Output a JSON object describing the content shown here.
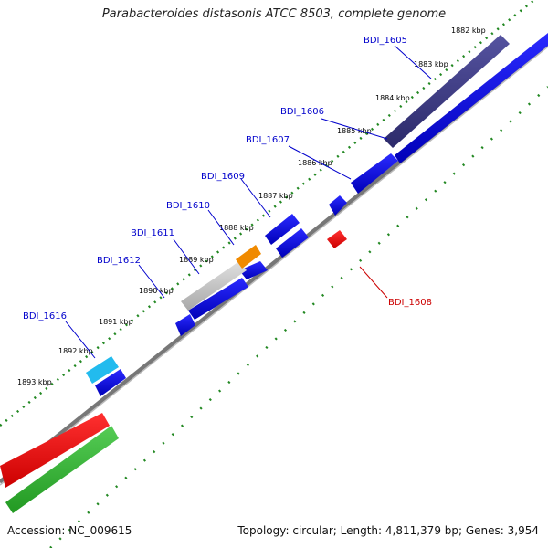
{
  "map": {
    "title": "Parabacteroides distasonis ATCC 8503, complete genome",
    "accession_text": "Accession: NC_009615",
    "summary_text": "Topology: circular; Length: 4,811,379 bp; Genes: 3,954",
    "ticks": [
      "1882 kbp",
      "1883 kbp",
      "1884 kbp",
      "1885 kbp",
      "1886 kbp",
      "1887 kbp",
      "1888 kbp",
      "1889 kbp",
      "1890 kbp",
      "1891 kbp",
      "1892 kbp",
      "1893 kbp"
    ],
    "genes": [
      {
        "name": "BDI_1605",
        "color": "#0000cc",
        "label_color": "#0000cc"
      },
      {
        "name": "BDI_1606",
        "color": "#0000cc",
        "label_color": "#0000cc"
      },
      {
        "name": "BDI_1607",
        "color": "#0000cc",
        "label_color": "#0000cc"
      },
      {
        "name": "BDI_1609",
        "color": "#0000cc",
        "label_color": "#0000cc"
      },
      {
        "name": "BDI_1610",
        "color": "#0000cc",
        "label_color": "#0000cc"
      },
      {
        "name": "BDI_1611",
        "color": "#0000cc",
        "label_color": "#0000cc"
      },
      {
        "name": "BDI_1612",
        "color": "#0000cc",
        "label_color": "#0000cc"
      },
      {
        "name": "BDI_1616",
        "color": "#0000cc",
        "label_color": "#0000cc"
      },
      {
        "name": "BDI_1608",
        "color": "#ee0000",
        "label_color": "#cc0000"
      }
    ],
    "colors": {
      "forward_gene": "#0000dd",
      "reverse_gene": "#ee0000",
      "track_purple": "#3c3a80",
      "track_gray": "#c0c0c0",
      "track_orange": "#f08a00",
      "track_cyan": "#22bbee",
      "track_red": "#ee0000",
      "track_green": "#33bb33",
      "backbone": "#888888",
      "tick_green": "#228822"
    }
  }
}
